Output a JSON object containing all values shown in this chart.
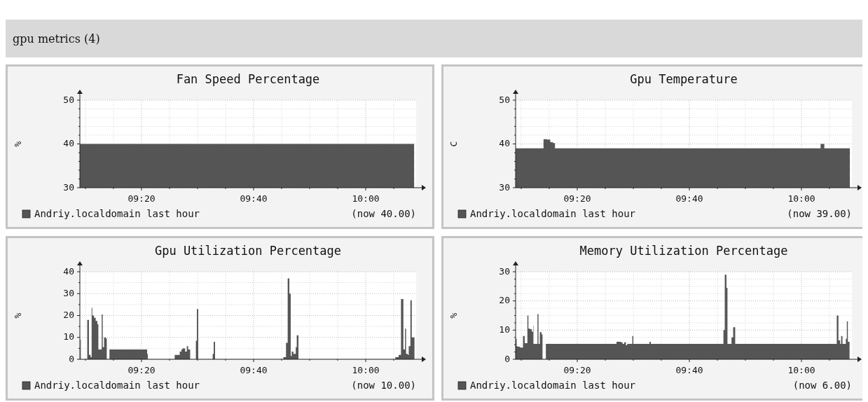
{
  "chart_data": [
    {
      "type": "other",
      "title": "gpu metrics (4)"
    },
    {
      "type": "area",
      "title": "Fan Speed Percentage",
      "ylabel": "%",
      "x": [
        9.15,
        10.144
      ],
      "series": [
        {
          "name": "Andriy.localdomain last hour",
          "color": "#555555",
          "values": [
            40,
            40
          ]
        }
      ],
      "xlim": [
        9.15,
        10.15
      ],
      "ylim": [
        30,
        50
      ],
      "xticks": [
        {
          "value": 9.1667,
          "label": null
        },
        {
          "value": 9.25,
          "label": null
        },
        {
          "value": 9.3333,
          "label": "09:20"
        },
        {
          "value": 9.4167,
          "label": null
        },
        {
          "value": 9.5,
          "label": null
        },
        {
          "value": 9.5833,
          "label": null
        },
        {
          "value": 9.6667,
          "label": "09:40"
        },
        {
          "value": 9.75,
          "label": null
        },
        {
          "value": 9.8333,
          "label": null
        },
        {
          "value": 9.9167,
          "label": null
        },
        {
          "value": 10,
          "label": "10:00"
        },
        {
          "value": 10.0833,
          "label": null
        }
      ],
      "yticks": [
        30,
        {
          "value": 32,
          "label": null
        },
        {
          "value": 34,
          "label": null
        },
        {
          "value": 36,
          "label": null
        },
        {
          "value": 38,
          "label": null
        },
        40,
        {
          "value": 42,
          "label": null
        },
        {
          "value": 44,
          "label": null
        },
        {
          "value": 46,
          "label": null
        },
        {
          "value": 48,
          "label": null
        },
        50
      ],
      "grid": true,
      "legend": "bottom",
      "annotations": [
        "(now 40.00)"
      ]
    },
    {
      "type": "area",
      "title": "Gpu Temperature",
      "ylabel": "C",
      "x": [
        9.15,
        9.233,
        9.243,
        9.253,
        9.261,
        9.267,
        10.057,
        10.068,
        10.144
      ],
      "series": [
        {
          "name": "Andriy.localdomain last hour",
          "color": "#555555",
          "values": [
            39,
            41.1,
            41,
            40.4,
            40.2,
            39,
            40,
            39,
            39
          ]
        }
      ],
      "xlim": [
        9.15,
        10.15
      ],
      "ylim": [
        30,
        50
      ],
      "xticks": [
        {
          "value": 9.1667,
          "label": null
        },
        {
          "value": 9.25,
          "label": null
        },
        {
          "value": 9.3333,
          "label": "09:20"
        },
        {
          "value": 9.4167,
          "label": null
        },
        {
          "value": 9.5,
          "label": null
        },
        {
          "value": 9.5833,
          "label": null
        },
        {
          "value": 9.6667,
          "label": "09:40"
        },
        {
          "value": 9.75,
          "label": null
        },
        {
          "value": 9.8333,
          "label": null
        },
        {
          "value": 9.9167,
          "label": null
        },
        {
          "value": 10,
          "label": "10:00"
        },
        {
          "value": 10.0833,
          "label": null
        }
      ],
      "yticks": [
        30,
        {
          "value": 32,
          "label": null
        },
        {
          "value": 34,
          "label": null
        },
        {
          "value": 36,
          "label": null
        },
        {
          "value": 38,
          "label": null
        },
        40,
        {
          "value": 42,
          "label": null
        },
        {
          "value": 44,
          "label": null
        },
        {
          "value": 46,
          "label": null
        },
        {
          "value": 48,
          "label": null
        },
        50
      ],
      "grid": true,
      "legend": "bottom",
      "annotations": [
        "(now 39.00)"
      ]
    },
    {
      "type": "area",
      "title": "Gpu Utilization Percentage",
      "ylabel": "%",
      "x": [
        9.151,
        9.153,
        9.172,
        9.177,
        9.182,
        9.185,
        9.187,
        9.192,
        9.197,
        9.202,
        9.205,
        9.215,
        9.218,
        9.222,
        9.227,
        9.23,
        9.238,
        9.35,
        9.352,
        9.432,
        9.447,
        9.452,
        9.455,
        9.463,
        9.468,
        9.472,
        9.478,
        9.495,
        9.498,
        9.502,
        9.545,
        9.548,
        9.552,
        9.755,
        9.763,
        9.768,
        9.773,
        9.777,
        9.78,
        9.785,
        9.792,
        9.795,
        9.8,
        10.088,
        10.098,
        10.105,
        10.112,
        10.117,
        10.12,
        10.125,
        10.128,
        10.133,
        10.137,
        10.145
      ],
      "series": [
        {
          "name": "Andriy.localdomain last hour",
          "color": "#555555",
          "values": [
            9,
            0,
            18,
            2,
            1,
            23.5,
            20,
            19,
            17.5,
            16,
            4.5,
            20.5,
            5.5,
            10,
            9.5,
            0,
            4.5,
            2.5,
            0,
            2,
            3.5,
            4.5,
            5,
            3.5,
            6,
            4.5,
            0,
            8.5,
            23,
            0,
            2.5,
            8,
            0,
            1,
            7.5,
            37,
            30,
            1.5,
            3.5,
            2.5,
            5.5,
            11,
            0,
            1,
            2,
            27.5,
            4.5,
            14,
            2.5,
            2,
            6,
            27,
            10,
            10
          ]
        }
      ],
      "xlim": [
        9.15,
        10.15
      ],
      "ylim": [
        0,
        40
      ],
      "xticks": [
        {
          "value": 9.1667,
          "label": null
        },
        {
          "value": 9.25,
          "label": null
        },
        {
          "value": 9.3333,
          "label": "09:20"
        },
        {
          "value": 9.4167,
          "label": null
        },
        {
          "value": 9.5,
          "label": null
        },
        {
          "value": 9.5833,
          "label": null
        },
        {
          "value": 9.6667,
          "label": "09:40"
        },
        {
          "value": 9.75,
          "label": null
        },
        {
          "value": 9.8333,
          "label": null
        },
        {
          "value": 9.9167,
          "label": null
        },
        {
          "value": 10,
          "label": "10:00"
        },
        {
          "value": 10.0833,
          "label": null
        }
      ],
      "yticks": [
        0,
        {
          "value": 5,
          "label": null
        },
        10,
        {
          "value": 15,
          "label": null
        },
        20,
        {
          "value": 25,
          "label": null
        },
        30,
        {
          "value": 35,
          "label": null
        },
        40
      ],
      "grid": true,
      "legend": "bottom",
      "annotations": [
        "(now 10.00)"
      ]
    },
    {
      "type": "area",
      "title": "Memory Utilization Percentage",
      "ylabel": "%",
      "x": [
        9.15,
        9.153,
        9.156,
        9.163,
        9.172,
        9.177,
        9.185,
        9.188,
        9.193,
        9.198,
        9.202,
        9.203,
        9.215,
        9.218,
        9.222,
        9.227,
        9.23,
        9.24,
        9.45,
        9.463,
        9.468,
        9.473,
        9.478,
        9.482,
        9.497,
        9.5,
        9.548,
        9.552,
        9.768,
        9.772,
        9.777,
        9.78,
        9.792,
        9.797,
        9.803,
        10.105,
        10.11,
        10.115,
        10.118,
        10.122,
        10.132,
        10.135,
        10.138,
        10.143
      ],
      "series": [
        {
          "name": "Andriy.localdomain last hour",
          "color": "#555555",
          "values": [
            7,
            4.5,
            4.3,
            4,
            8,
            5.5,
            15,
            10.5,
            10.3,
            9.5,
            11.5,
            5.3,
            15.5,
            5.3,
            9.3,
            8.5,
            0,
            5.3,
            6,
            5.8,
            5.3,
            5.8,
            4.8,
            5.3,
            8,
            5.3,
            6,
            5.3,
            10,
            29,
            24.5,
            5.3,
            7.5,
            11,
            5.3,
            15,
            6.5,
            5.3,
            8,
            5.3,
            7,
            13,
            6,
            6
          ]
        }
      ],
      "xlim": [
        9.15,
        10.15
      ],
      "ylim": [
        0,
        30
      ],
      "xticks": [
        {
          "value": 9.1667,
          "label": null
        },
        {
          "value": 9.25,
          "label": null
        },
        {
          "value": 9.3333,
          "label": "09:20"
        },
        {
          "value": 9.4167,
          "label": null
        },
        {
          "value": 9.5,
          "label": null
        },
        {
          "value": 9.5833,
          "label": null
        },
        {
          "value": 9.6667,
          "label": "09:40"
        },
        {
          "value": 9.75,
          "label": null
        },
        {
          "value": 9.8333,
          "label": null
        },
        {
          "value": 9.9167,
          "label": null
        },
        {
          "value": 10,
          "label": "10:00"
        },
        {
          "value": 10.0833,
          "label": null
        }
      ],
      "yticks": [
        0,
        {
          "value": 2.5,
          "label": null
        },
        {
          "value": 5,
          "label": null
        },
        {
          "value": 7.5,
          "label": null
        },
        10,
        {
          "value": 12.5,
          "label": null
        },
        {
          "value": 15,
          "label": null
        },
        {
          "value": 17.5,
          "label": null
        },
        20,
        {
          "value": 22.5,
          "label": null
        },
        {
          "value": 25,
          "label": null
        },
        {
          "value": 27.5,
          "label": null
        },
        30
      ],
      "grid": true,
      "legend": "bottom",
      "annotations": [
        "(now 6.00)"
      ]
    }
  ]
}
